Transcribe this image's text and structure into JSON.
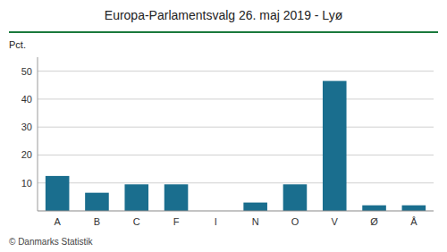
{
  "chart_data": {
    "type": "bar",
    "title": "Europa-Parlamentsvalg 26. maj 2019 - Lyø",
    "categories": [
      "A",
      "B",
      "C",
      "F",
      "I",
      "N",
      "O",
      "V",
      "Ø",
      "Å"
    ],
    "values": [
      12.5,
      6.5,
      9.5,
      9.5,
      0.0,
      3.0,
      9.5,
      46.5,
      2.0,
      2.0
    ],
    "color": "#1a6e8e",
    "ylabel": "Pct.",
    "footer": "© Danmarks Statistik",
    "ylim": [
      0,
      55
    ],
    "yticks": [
      10,
      20,
      30,
      40,
      50
    ],
    "grid": true
  }
}
